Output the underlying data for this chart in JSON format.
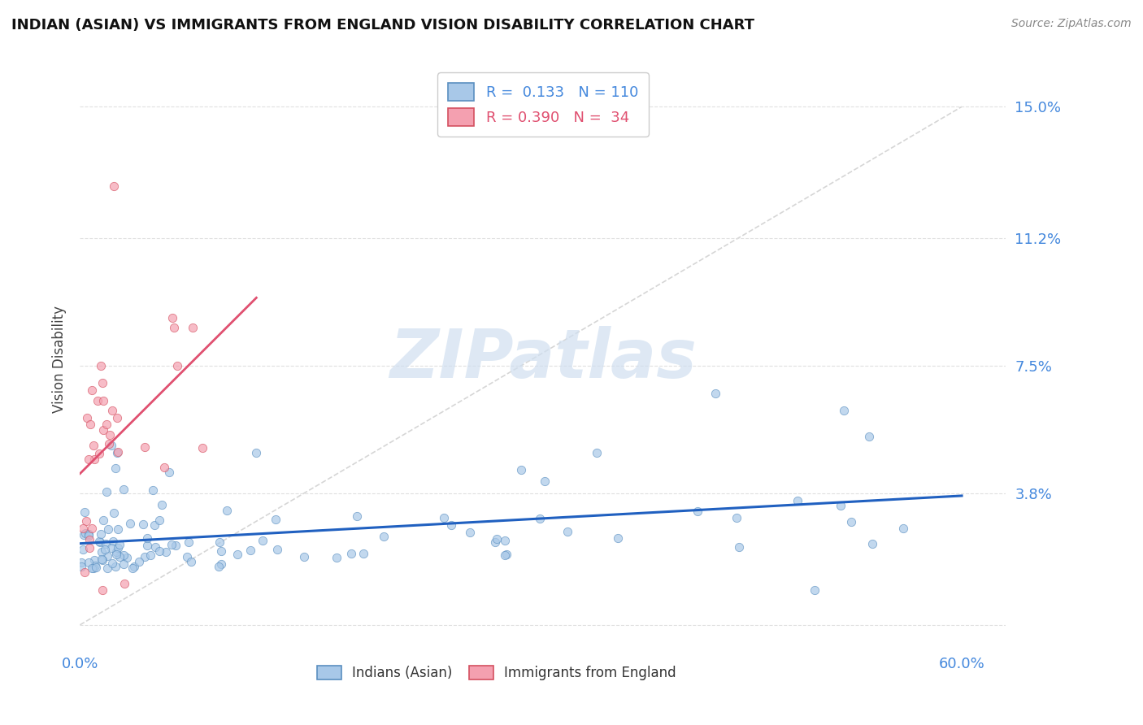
{
  "title": "INDIAN (ASIAN) VS IMMIGRANTS FROM ENGLAND VISION DISABILITY CORRELATION CHART",
  "source": "Source: ZipAtlas.com",
  "ylabel": "Vision Disability",
  "ytick_vals": [
    0.0,
    0.038,
    0.075,
    0.112,
    0.15
  ],
  "ytick_labels": [
    "",
    "3.8%",
    "7.5%",
    "11.2%",
    "15.0%"
  ],
  "xlim": [
    0.0,
    0.63
  ],
  "ylim": [
    -0.008,
    0.162
  ],
  "series1_color": "#a8c8e8",
  "series1_edge": "#5a8fc0",
  "series2_color": "#f4a0b0",
  "series2_edge": "#d45060",
  "trendline1_color": "#2060c0",
  "trendline2_color": "#e05070",
  "diagonal_color": "#cccccc",
  "grid_color": "#dddddd",
  "watermark": "ZIPatlas",
  "watermark_color": "#d0dff0",
  "legend1_R": "0.133",
  "legend1_N": "110",
  "legend2_R": "0.390",
  "legend2_N": "34",
  "legend_text_color1": "#4488dd",
  "legend_text_color2": "#e05070",
  "title_color": "#111111",
  "source_color": "#888888",
  "ylabel_color": "#444444",
  "xtick_color": "#4488dd",
  "ytick_color": "#4488dd",
  "seed_indian": 7,
  "seed_england": 21,
  "n_indian": 110,
  "n_england": 34
}
